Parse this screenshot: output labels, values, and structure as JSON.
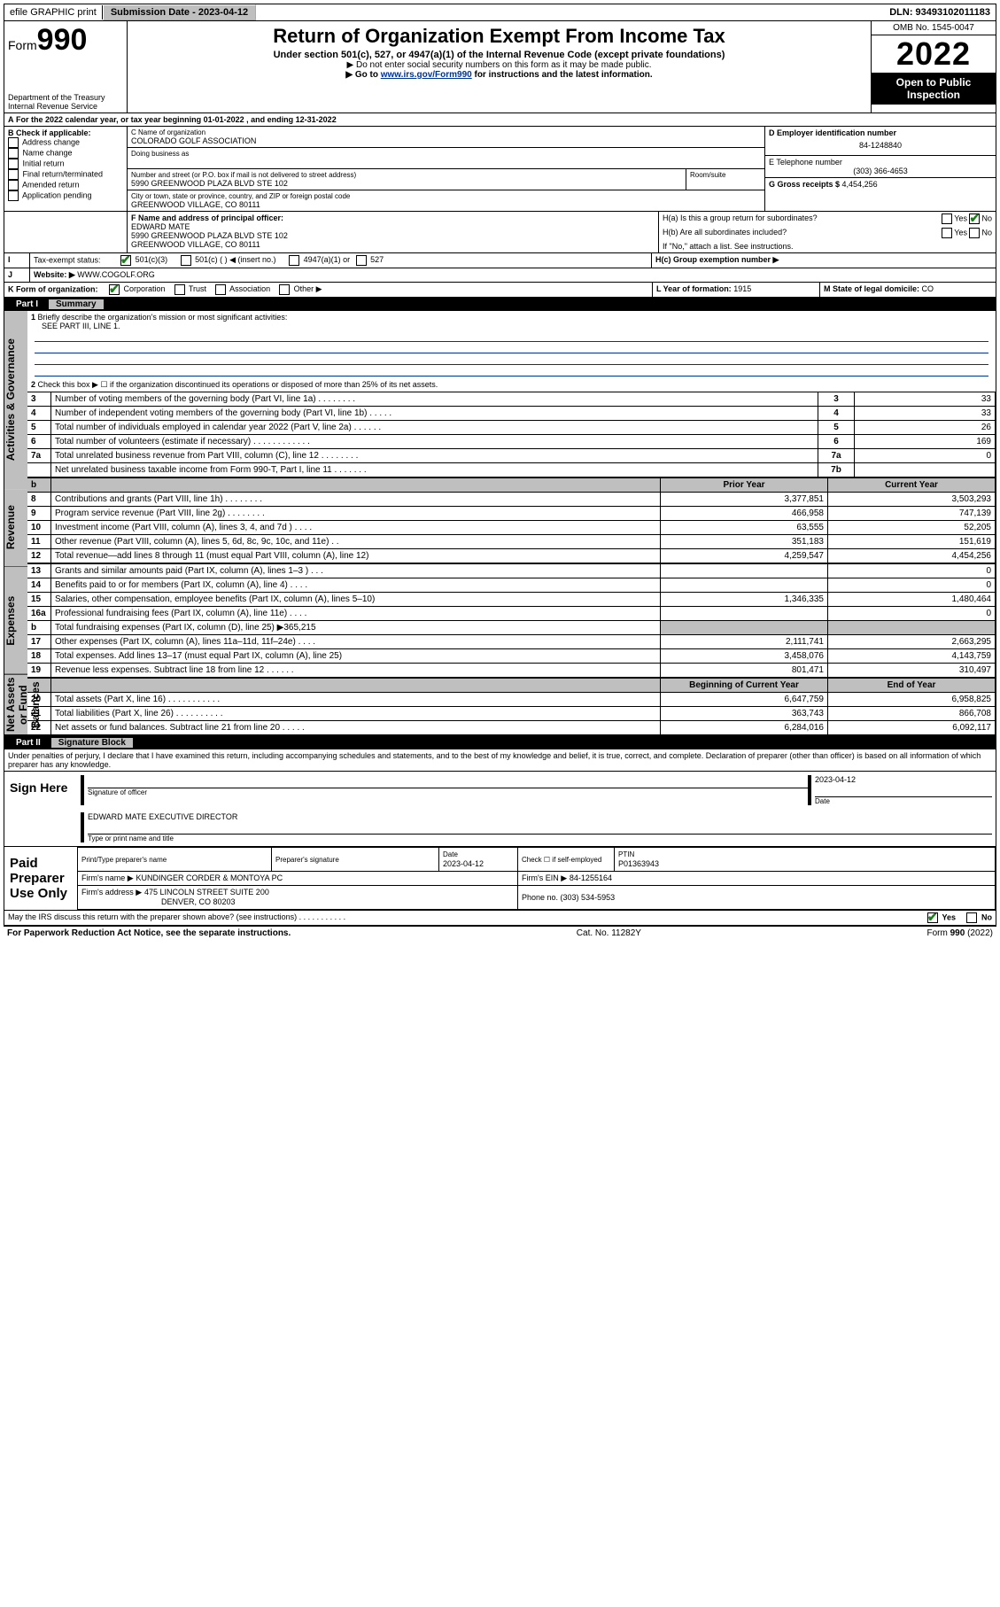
{
  "topbar": {
    "efile_label": "efile GRAPHIC print",
    "submission_label": "Submission Date - 2023-04-12",
    "dln_label": "DLN: 93493102011183"
  },
  "header": {
    "form_word": "Form",
    "form_num": "990",
    "dept": "Department of the Treasury",
    "irs": "Internal Revenue Service",
    "title": "Return of Organization Exempt From Income Tax",
    "subtitle": "Under section 501(c), 527, or 4947(a)(1) of the Internal Revenue Code (except private foundations)",
    "note1": "▶ Do not enter social security numbers on this form as it may be made public.",
    "note2_pre": "▶ Go to ",
    "note2_link": "www.irs.gov/Form990",
    "note2_post": " for instructions and the latest information.",
    "omb": "OMB No. 1545-0047",
    "year": "2022",
    "open": "Open to Public Inspection"
  },
  "A": {
    "text_pre": "For the 2022 calendar year, or tax year beginning ",
    "begin": "01-01-2022",
    "mid": " , and ending ",
    "end": "12-31-2022"
  },
  "B": {
    "label": "B Check if applicable:",
    "opts": [
      "Address change",
      "Name change",
      "Initial return",
      "Final return/terminated",
      "Amended return",
      "Application pending"
    ]
  },
  "C": {
    "name_label": "C Name of organization",
    "name": "COLORADO GOLF ASSOCIATION",
    "dba_label": "Doing business as",
    "addr_label": "Number and street (or P.O. box if mail is not delivered to street address)",
    "room_label": "Room/suite",
    "addr": "5990 GREENWOOD PLAZA BLVD STE 102",
    "city_label": "City or town, state or province, country, and ZIP or foreign postal code",
    "city": "GREENWOOD VILLAGE, CO  80111"
  },
  "D": {
    "label": "D Employer identification number",
    "val": "84-1248840"
  },
  "E": {
    "label": "E Telephone number",
    "val": "(303) 366-4653"
  },
  "G": {
    "label": "G Gross receipts $ ",
    "val": "4,454,256"
  },
  "F": {
    "label": "F Name and address of principal officer:",
    "name": "EDWARD MATE",
    "addr1": "5990 GREENWOOD PLAZA BLVD STE 102",
    "addr2": "GREENWOOD VILLAGE, CO  80111"
  },
  "H": {
    "a": "H(a)  Is this a group return for subordinates?",
    "b": "H(b)  Are all subordinates included?",
    "b_note": "If \"No,\" attach a list. See instructions.",
    "c": "H(c)  Group exemption number ▶",
    "yes": "Yes",
    "no": "No"
  },
  "I": {
    "label": "Tax-exempt status:",
    "opt1": "501(c)(3)",
    "opt2": "501(c) (   ) ◀ (insert no.)",
    "opt3": "4947(a)(1) or",
    "opt4": "527"
  },
  "J": {
    "label": "Website: ▶",
    "val": "WWW.COGOLF.ORG"
  },
  "K": {
    "label": "K Form of organization:",
    "opts": [
      "Corporation",
      "Trust",
      "Association",
      "Other ▶"
    ]
  },
  "L": {
    "label": "L Year of formation: ",
    "val": "1915"
  },
  "M": {
    "label": "M State of legal domicile: ",
    "val": "CO"
  },
  "part1": {
    "bar_part": "Part I",
    "bar_title": "Summary",
    "l1": "Briefly describe the organization's mission or most significant activities:",
    "l1_val": "SEE PART III, LINE 1.",
    "l2": "Check this box ▶ ☐  if the organization discontinued its operations or disposed of more than 25% of its net assets.",
    "rows_top": [
      {
        "n": "3",
        "t": "Number of voting members of the governing body (Part VI, line 1a)   .    .    .    .    .    .    .    .",
        "box": "3",
        "v": "33"
      },
      {
        "n": "4",
        "t": "Number of independent voting members of the governing body (Part VI, line 1b)  .    .    .    .    .",
        "box": "4",
        "v": "33"
      },
      {
        "n": "5",
        "t": "Total number of individuals employed in calendar year 2022 (Part V, line 2a)   .    .    .    .    .    .",
        "box": "5",
        "v": "26"
      },
      {
        "n": "6",
        "t": "Total number of volunteers (estimate if necessary)   .    .    .    .    .    .    .    .    .    .    .    .",
        "box": "6",
        "v": "169"
      },
      {
        "n": "7a",
        "t": "Total unrelated business revenue from Part VIII, column (C), line 12  .    .    .    .    .    .    .    .",
        "box": "7a",
        "v": "0"
      },
      {
        "n": "",
        "t": "Net unrelated business taxable income from Form 990-T, Part I, line 11  .    .    .    .    .    .    .",
        "box": "7b",
        "v": ""
      }
    ],
    "hdr_prior": "Prior Year",
    "hdr_curr": "Current Year",
    "rev_rows": [
      {
        "n": "8",
        "t": "Contributions and grants (Part VIII, line 1h)   .    .    .    .    .    .    .    .",
        "p": "3,377,851",
        "c": "3,503,293"
      },
      {
        "n": "9",
        "t": "Program service revenue (Part VIII, line 2g)   .    .    .    .    .    .    .    .",
        "p": "466,958",
        "c": "747,139"
      },
      {
        "n": "10",
        "t": "Investment income (Part VIII, column (A), lines 3, 4, and 7d )   .    .    .    .",
        "p": "63,555",
        "c": "52,205"
      },
      {
        "n": "11",
        "t": "Other revenue (Part VIII, column (A), lines 5, 6d, 8c, 9c, 10c, and 11e)   .    .",
        "p": "351,183",
        "c": "151,619"
      },
      {
        "n": "12",
        "t": "Total revenue—add lines 8 through 11 (must equal Part VIII, column (A), line 12)",
        "p": "4,259,547",
        "c": "4,454,256"
      }
    ],
    "exp_rows": [
      {
        "n": "13",
        "t": "Grants and similar amounts paid (Part IX, column (A), lines 1–3 )   .    .    .",
        "p": "",
        "c": "0"
      },
      {
        "n": "14",
        "t": "Benefits paid to or for members (Part IX, column (A), line 4)   .    .    .    .",
        "p": "",
        "c": "0"
      },
      {
        "n": "15",
        "t": "Salaries, other compensation, employee benefits (Part IX, column (A), lines 5–10)",
        "p": "1,346,335",
        "c": "1,480,464"
      },
      {
        "n": "16a",
        "t": "Professional fundraising fees (Part IX, column (A), line 11e)   .    .    .    .",
        "p": "",
        "c": "0"
      },
      {
        "n": "b",
        "t": "Total fundraising expenses (Part IX, column (D), line 25) ▶365,215",
        "p": "shade",
        "c": "shade"
      },
      {
        "n": "17",
        "t": "Other expenses (Part IX, column (A), lines 11a–11d, 11f–24e)   .    .    .    .",
        "p": "2,111,741",
        "c": "2,663,295"
      },
      {
        "n": "18",
        "t": "Total expenses. Add lines 13–17 (must equal Part IX, column (A), line 25)",
        "p": "3,458,076",
        "c": "4,143,759"
      },
      {
        "n": "19",
        "t": "Revenue less expenses. Subtract line 18 from line 12   .    .    .    .    .    .",
        "p": "801,471",
        "c": "310,497"
      }
    ],
    "na_hdr_b": "Beginning of Current Year",
    "na_hdr_e": "End of Year",
    "na_rows": [
      {
        "n": "20",
        "t": "Total assets (Part X, line 16)   .    .    .    .    .    .    .    .    .    .    .",
        "p": "6,647,759",
        "c": "6,958,825"
      },
      {
        "n": "21",
        "t": "Total liabilities (Part X, line 26)   .    .    .    .    .    .    .    .    .    .",
        "p": "363,743",
        "c": "866,708"
      },
      {
        "n": "22",
        "t": "Net assets or fund balances. Subtract line 21 from line 20   .    .    .    .    .",
        "p": "6,284,016",
        "c": "6,092,117"
      }
    ],
    "vert_ag": "Activities & Governance",
    "vert_rev": "Revenue",
    "vert_exp": "Expenses",
    "vert_na": "Net Assets or Fund Balances"
  },
  "part2": {
    "bar_part": "Part II",
    "bar_title": "Signature Block",
    "perjury": "Under penalties of perjury, I declare that I have examined this return, including accompanying schedules and statements, and to the best of my knowledge and belief, it is true, correct, and complete. Declaration of preparer (other than officer) is based on all information of which preparer has any knowledge.",
    "sign_here": "Sign Here",
    "sig_officer": "Signature of officer",
    "date": "Date",
    "sig_date": "2023-04-12",
    "officer_name": "EDWARD MATE  EXECUTIVE DIRECTOR",
    "type_name": "Type or print name and title",
    "paid": "Paid Preparer Use Only",
    "prep_name_h": "Print/Type preparer's name",
    "prep_sig_h": "Preparer's signature",
    "prep_date_h": "Date",
    "prep_date": "2023-04-12",
    "prep_check": "Check ☐ if self-employed",
    "ptin_h": "PTIN",
    "ptin": "P01363943",
    "firm_name_l": "Firm's name    ▶",
    "firm_name": "KUNDINGER CORDER & MONTOYA PC",
    "firm_ein_l": "Firm's EIN ▶",
    "firm_ein": "84-1255164",
    "firm_addr_l": "Firm's address ▶",
    "firm_addr1": "475 LINCOLN STREET SUITE 200",
    "firm_addr2": "DENVER, CO  80203",
    "phone_l": "Phone no. ",
    "phone": "(303) 534-5953",
    "may_irs": "May the IRS discuss this return with the preparer shown above? (see instructions)   .    .    .    .    .    .    .    .    .    .    .",
    "yes": "Yes",
    "no": "No"
  },
  "footer": {
    "l": "For Paperwork Reduction Act Notice, see the separate instructions.",
    "m": "Cat. No. 11282Y",
    "r": "Form 990 (2022)"
  }
}
